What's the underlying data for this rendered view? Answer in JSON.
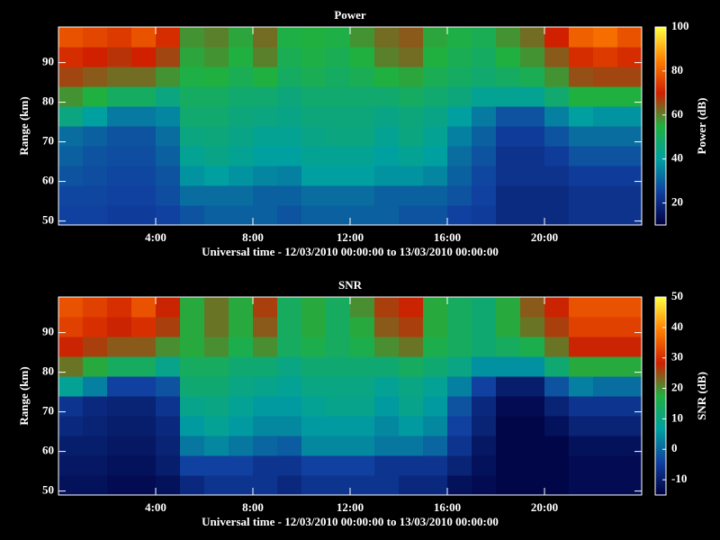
{
  "chart_data": [
    {
      "type": "heatmap",
      "title": "Power",
      "xlabel": "Universal time - 12/03/2010 00:00:00 to 13/03/2010 00:00:00",
      "ylabel": "Range (km)",
      "zlabel": "Power (dB)",
      "xlim": [
        0,
        24
      ],
      "ylim": [
        49,
        99
      ],
      "zlim": [
        10,
        100
      ],
      "xticks": [
        {
          "value": 4,
          "label": "4:00"
        },
        {
          "value": 8,
          "label": "8:00"
        },
        {
          "value": 12,
          "label": "12:00"
        },
        {
          "value": 16,
          "label": "16:00"
        },
        {
          "value": 20,
          "label": "20:00"
        }
      ],
      "yticks": [
        50,
        60,
        70,
        80,
        90
      ],
      "zticks": [
        20,
        40,
        60,
        80,
        100
      ],
      "colormap": [
        "#000040",
        "#1040a0",
        "#00a0a0",
        "#20b040",
        "#d02000",
        "#ff8000",
        "#ffff40"
      ],
      "xbins": [
        0,
        1,
        2,
        3,
        4,
        5,
        6,
        7,
        8,
        9,
        10,
        11,
        12,
        13,
        14,
        15,
        16,
        17,
        18,
        19,
        20,
        21,
        22,
        23,
        24
      ],
      "ybins": [
        49,
        54,
        59,
        64,
        69,
        74,
        79,
        84,
        89,
        94,
        99
      ],
      "z": [
        [
          25,
          25,
          24,
          24,
          25,
          28,
          30,
          30,
          30,
          28,
          30,
          30,
          30,
          30,
          28,
          28,
          25,
          24,
          20,
          20,
          20,
          22,
          22,
          22
        ],
        [
          26,
          26,
          25,
          25,
          27,
          32,
          32,
          32,
          30,
          30,
          32,
          32,
          32,
          30,
          30,
          30,
          28,
          25,
          20,
          20,
          20,
          22,
          22,
          22
        ],
        [
          28,
          27,
          26,
          26,
          28,
          38,
          40,
          38,
          36,
          35,
          40,
          40,
          40,
          38,
          38,
          36,
          30,
          26,
          22,
          22,
          22,
          24,
          24,
          24
        ],
        [
          30,
          28,
          27,
          27,
          30,
          42,
          44,
          42,
          40,
          40,
          42,
          42,
          42,
          40,
          42,
          40,
          32,
          28,
          22,
          22,
          24,
          28,
          28,
          28
        ],
        [
          32,
          30,
          28,
          28,
          32,
          45,
          46,
          44,
          42,
          42,
          44,
          45,
          45,
          42,
          45,
          42,
          35,
          30,
          24,
          24,
          28,
          32,
          32,
          32
        ],
        [
          45,
          40,
          34,
          34,
          36,
          48,
          48,
          46,
          45,
          44,
          46,
          46,
          46,
          44,
          46,
          44,
          40,
          34,
          28,
          28,
          35,
          40,
          38,
          38
        ],
        [
          58,
          55,
          50,
          50,
          45,
          50,
          50,
          48,
          48,
          46,
          48,
          48,
          48,
          48,
          50,
          48,
          46,
          42,
          42,
          42,
          48,
          55,
          55,
          55
        ],
        [
          66,
          64,
          62,
          62,
          58,
          54,
          55,
          52,
          55,
          50,
          52,
          50,
          52,
          55,
          56,
          52,
          50,
          48,
          50,
          52,
          58,
          65,
          66,
          66
        ],
        [
          72,
          70,
          68,
          70,
          66,
          56,
          58,
          55,
          60,
          52,
          54,
          52,
          55,
          60,
          62,
          55,
          52,
          50,
          55,
          58,
          64,
          72,
          74,
          72
        ],
        [
          78,
          76,
          74,
          78,
          72,
          58,
          60,
          56,
          62,
          54,
          55,
          54,
          58,
          62,
          64,
          56,
          54,
          52,
          58,
          62,
          70,
          80,
          82,
          78
        ]
      ]
    },
    {
      "type": "heatmap",
      "title": "SNR",
      "xlabel": "Universal time - 12/03/2010 00:00:00 to 13/03/2010 00:00:00",
      "ylabel": "Range (km)",
      "zlabel": "SNR (dB)",
      "xlim": [
        0,
        24
      ],
      "ylim": [
        49,
        99
      ],
      "zlim": [
        -15,
        50
      ],
      "xticks": [
        {
          "value": 4,
          "label": "4:00"
        },
        {
          "value": 8,
          "label": "8:00"
        },
        {
          "value": 12,
          "label": "12:00"
        },
        {
          "value": 16,
          "label": "16:00"
        },
        {
          "value": 20,
          "label": "20:00"
        }
      ],
      "yticks": [
        50,
        60,
        70,
        80,
        90
      ],
      "zticks": [
        -10,
        0,
        10,
        20,
        30,
        40,
        50
      ],
      "colormap": [
        "#000040",
        "#1040a0",
        "#00a0a0",
        "#20b040",
        "#d02000",
        "#ff8000",
        "#ffff40"
      ],
      "xbins": [
        0,
        1,
        2,
        3,
        4,
        5,
        6,
        7,
        8,
        9,
        10,
        11,
        12,
        13,
        14,
        15,
        16,
        17,
        18,
        19,
        20,
        21,
        22,
        23,
        24
      ],
      "ybins": [
        49,
        54,
        59,
        64,
        69,
        74,
        79,
        84,
        89,
        94,
        99
      ],
      "z": [
        [
          -12,
          -12,
          -13,
          -13,
          -12,
          -8,
          -6,
          -6,
          -6,
          -8,
          -6,
          -6,
          -6,
          -6,
          -8,
          -8,
          -12,
          -13,
          -14,
          -14,
          -14,
          -13,
          -13,
          -13
        ],
        [
          -11,
          -11,
          -12,
          -12,
          -10,
          -4,
          -4,
          -4,
          -6,
          -6,
          -4,
          -4,
          -4,
          -6,
          -6,
          -6,
          -9,
          -12,
          -14,
          -14,
          -14,
          -13,
          -13,
          -13
        ],
        [
          -10,
          -10,
          -11,
          -11,
          -9,
          2,
          4,
          2,
          0,
          -1,
          4,
          4,
          4,
          2,
          2,
          0,
          -6,
          -11,
          -14,
          -14,
          -14,
          -12,
          -12,
          -12
        ],
        [
          -8,
          -9,
          -10,
          -10,
          -8,
          6,
          8,
          6,
          4,
          4,
          6,
          6,
          6,
          4,
          6,
          4,
          -4,
          -9,
          -14,
          -14,
          -12,
          -9,
          -9,
          -9
        ],
        [
          -6,
          -8,
          -9,
          -9,
          -6,
          9,
          10,
          8,
          6,
          6,
          8,
          9,
          9,
          6,
          9,
          6,
          -2,
          -8,
          -13,
          -13,
          -9,
          -6,
          -6,
          -6
        ],
        [
          8,
          3,
          -4,
          -4,
          -2,
          12,
          12,
          10,
          9,
          8,
          10,
          10,
          10,
          8,
          10,
          8,
          3,
          -4,
          -10,
          -10,
          -2,
          3,
          1,
          1
        ],
        [
          22,
          18,
          14,
          14,
          9,
          14,
          14,
          12,
          12,
          10,
          12,
          12,
          12,
          12,
          14,
          12,
          10,
          5,
          5,
          5,
          12,
          18,
          18,
          18
        ],
        [
          28,
          26,
          24,
          24,
          20,
          18,
          20,
          16,
          20,
          14,
          16,
          14,
          16,
          20,
          22,
          16,
          14,
          12,
          14,
          16,
          22,
          28,
          28,
          28
        ],
        [
          32,
          30,
          28,
          30,
          26,
          18,
          22,
          18,
          24,
          14,
          18,
          14,
          18,
          24,
          26,
          18,
          14,
          12,
          18,
          22,
          26,
          32,
          32,
          32
        ],
        [
          34,
          32,
          30,
          34,
          28,
          18,
          22,
          18,
          26,
          14,
          18,
          14,
          20,
          26,
          28,
          18,
          14,
          12,
          18,
          24,
          28,
          34,
          34,
          34
        ]
      ]
    }
  ]
}
